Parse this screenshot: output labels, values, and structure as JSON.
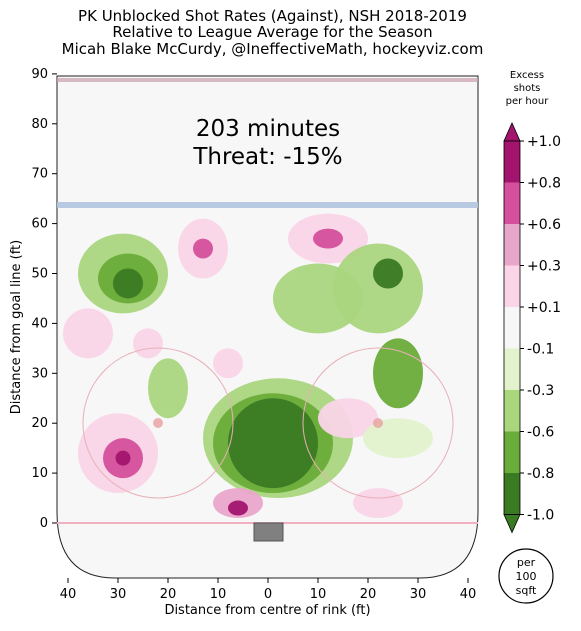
{
  "chart_data": {
    "type": "heatmap",
    "title": "PK Unblocked Shot Rates (Against), NSH 2018-2019",
    "subtitle": "Relative to League Average for the Season",
    "credit": "Micah Blake McCurdy, @IneffectiveMath, hockeyviz.com",
    "xlabel": "Distance from centre of rink (ft)",
    "ylabel": "Distance from goal line (ft)",
    "xlim": [
      42,
      -42
    ],
    "ylim": [
      -11,
      90
    ],
    "x_ticks": [
      "40",
      "30",
      "20",
      "10",
      "0",
      "10",
      "20",
      "30",
      "40"
    ],
    "y_ticks": [
      "0",
      "10",
      "20",
      "30",
      "40",
      "50",
      "60",
      "70",
      "80",
      "90"
    ],
    "annotation_minutes": "203 minutes",
    "annotation_threat": "Threat: -15%",
    "colorbar_title": [
      "Excess",
      "shots",
      "per hour"
    ],
    "colorbar_labels": [
      "+1.0",
      "+0.8",
      "+0.6",
      "+0.3",
      "+0.1",
      "-0.1",
      "-0.3",
      "-0.6",
      "-0.8",
      "-1.0"
    ],
    "colorbar_colors": [
      "#a3146e",
      "#d4509c",
      "#e9a6cb",
      "#fad5e7",
      "#f7f7f7",
      "#e2f2cd",
      "#aad67e",
      "#6aac39",
      "#3a7a22"
    ],
    "unit_badge": [
      "per",
      "100",
      "sqft"
    ],
    "levels": [
      {
        "x": -29,
        "y": 50,
        "rx": 9,
        "ry": 8,
        "level": -0.45
      },
      {
        "x": -28,
        "y": 49,
        "rx": 6,
        "ry": 5,
        "level": -0.7
      },
      {
        "x": -28,
        "y": 48,
        "rx": 3,
        "ry": 3,
        "level": -0.9
      },
      {
        "x": -13,
        "y": 55,
        "rx": 5,
        "ry": 6,
        "level": 0.35
      },
      {
        "x": -13,
        "y": 55,
        "rx": 2,
        "ry": 2,
        "level": 0.7
      },
      {
        "x": 12,
        "y": 57,
        "rx": 8,
        "ry": 5,
        "level": 0.35
      },
      {
        "x": 12,
        "y": 57,
        "rx": 3,
        "ry": 2,
        "level": 0.7
      },
      {
        "x": -36,
        "y": 38,
        "rx": 5,
        "ry": 5,
        "level": 0.25
      },
      {
        "x": -24,
        "y": 36,
        "rx": 3,
        "ry": 3,
        "level": 0.35
      },
      {
        "x": -20,
        "y": 27,
        "rx": 4,
        "ry": 6,
        "level": -0.5
      },
      {
        "x": -8,
        "y": 32,
        "rx": 3,
        "ry": 3,
        "level": 0.35
      },
      {
        "x": 2,
        "y": 17,
        "rx": 15,
        "ry": 12,
        "level": -0.5
      },
      {
        "x": 1,
        "y": 16,
        "rx": 12,
        "ry": 10,
        "level": -0.75
      },
      {
        "x": 1,
        "y": 16,
        "rx": 9,
        "ry": 9,
        "level": -0.95
      },
      {
        "x": 10,
        "y": 45,
        "rx": 9,
        "ry": 7,
        "level": -0.5
      },
      {
        "x": 22,
        "y": 47,
        "rx": 9,
        "ry": 9,
        "level": -0.6
      },
      {
        "x": 24,
        "y": 50,
        "rx": 3,
        "ry": 3,
        "level": -0.9
      },
      {
        "x": 26,
        "y": 30,
        "rx": 5,
        "ry": 7,
        "level": -0.7
      },
      {
        "x": 16,
        "y": 21,
        "rx": 6,
        "ry": 4,
        "level": 0.35
      },
      {
        "x": 26,
        "y": 17,
        "rx": 7,
        "ry": 4,
        "level": -0.35
      },
      {
        "x": -30,
        "y": 14,
        "rx": 8,
        "ry": 8,
        "level": 0.35
      },
      {
        "x": -29,
        "y": 13,
        "rx": 4,
        "ry": 4,
        "level": 0.7
      },
      {
        "x": -29,
        "y": 13,
        "rx": 1.5,
        "ry": 1.5,
        "level": 0.95
      },
      {
        "x": -6,
        "y": 4,
        "rx": 5,
        "ry": 3,
        "level": 0.5
      },
      {
        "x": -6,
        "y": 3,
        "rx": 2,
        "ry": 1.5,
        "level": 0.95
      },
      {
        "x": 22,
        "y": 4,
        "rx": 5,
        "ry": 3,
        "level": 0.35
      }
    ]
  }
}
